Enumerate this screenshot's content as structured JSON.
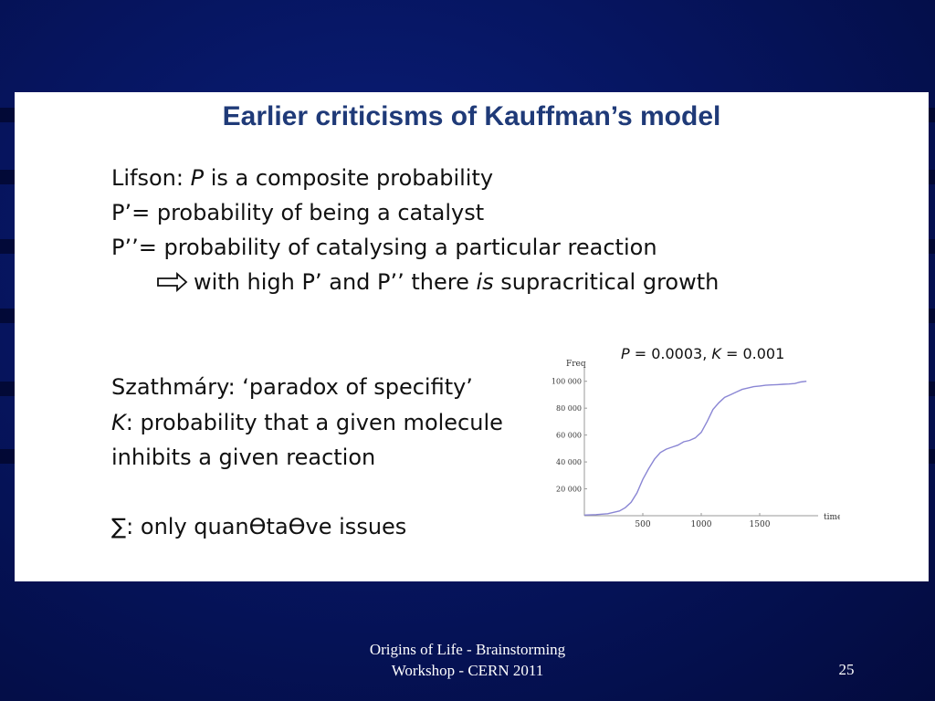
{
  "title": "Earlier criticisms of Kauffman’s model",
  "lines": {
    "lifson_pre": "Lifson: ",
    "lifson_var": "P",
    "lifson_post": " is a composite probability",
    "p1": "P’= probability of being a catalyst",
    "p2": "P’’= probability of catalysing a particular reaction",
    "arrow_pre": "with high P’ and P’’ there ",
    "arrow_em": "is",
    "arrow_post": " supracritical growth",
    "szath": "Szathmáry: ‘paradox of specifity’",
    "k_var": "K",
    "k_post": ": probability that a given molecule",
    "k_cont": "inhibits a given reaction",
    "sigma": "∑: only quanƟtaƟve issues"
  },
  "chart_data": {
    "type": "line",
    "annotation": {
      "p_var": "P",
      "p_val": " = 0.0003, ",
      "k_var": "K",
      "k_val": " = 0.001"
    },
    "ylabel": "Freq",
    "xlabel": "time",
    "xlim": [
      0,
      2000
    ],
    "ylim": [
      0,
      110000
    ],
    "x_ticks": [
      500,
      1000,
      1500
    ],
    "x_tick_labels": [
      "500",
      "1000",
      "1500"
    ],
    "y_ticks": [
      20000,
      40000,
      60000,
      80000,
      100000
    ],
    "y_tick_labels": [
      "20 000",
      "40 000",
      "60 000",
      "80 000",
      "100 000"
    ],
    "line_color": "#8a86d4",
    "series": [
      {
        "x": [
          0,
          100,
          200,
          300,
          350,
          400,
          450,
          500,
          550,
          600,
          650,
          700,
          750,
          800,
          850,
          900,
          950,
          1000,
          1050,
          1100,
          1150,
          1200,
          1250,
          1300,
          1350,
          1400,
          1450,
          1500,
          1550,
          1600,
          1650,
          1700,
          1750,
          1800,
          1850,
          1900
        ],
        "y": [
          500,
          800,
          1500,
          3500,
          6000,
          10000,
          17000,
          27000,
          35000,
          42000,
          47000,
          49500,
          51000,
          52500,
          55000,
          56000,
          58000,
          62000,
          70000,
          79000,
          84000,
          88000,
          90000,
          92000,
          94000,
          95000,
          96000,
          96500,
          97000,
          97300,
          97500,
          97800,
          98000,
          98300,
          99500,
          100000
        ]
      }
    ]
  },
  "footer": {
    "line1": "Origins of Life - Brainstorming",
    "line2": "Workshop - CERN 2011"
  },
  "page_number": "25"
}
